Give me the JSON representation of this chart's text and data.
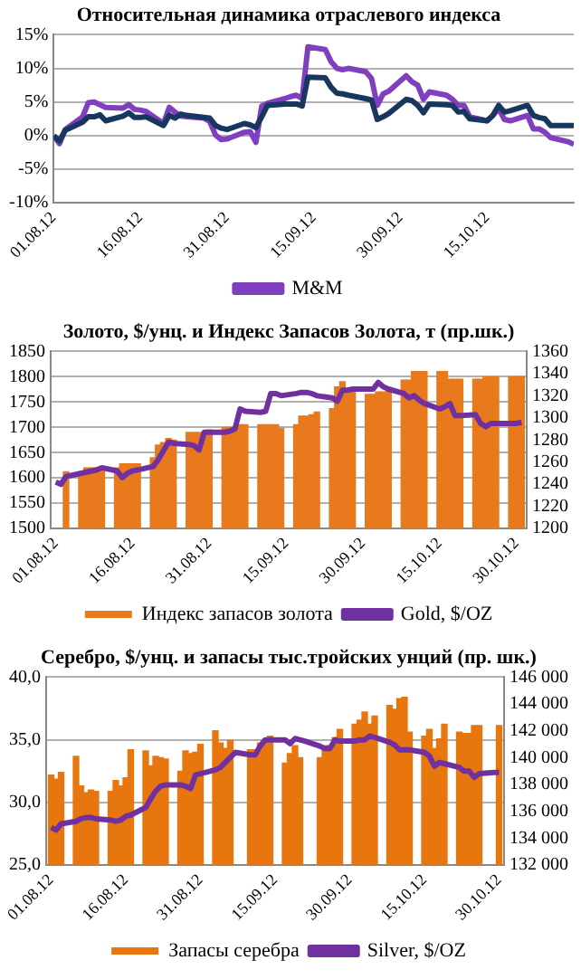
{
  "chart_data": [
    {
      "type": "line",
      "title": "Относительная динамика отраслевого индекса",
      "legend": "bottom",
      "grid": "y",
      "x": [
        "--08-01",
        "--08-02",
        "--08-03",
        "--08-06",
        "--08-07",
        "--08-08",
        "--08-09",
        "--08-10",
        "--08-13",
        "--08-14",
        "--08-15",
        "--08-16",
        "--08-17",
        "--08-20",
        "--08-21",
        "--08-22",
        "--08-23",
        "--08-24",
        "--08-27",
        "--08-28",
        "--08-29",
        "--08-30",
        "--08-31",
        "--09-03",
        "--09-04",
        "--09-05",
        "--09-06",
        "--09-07",
        "--09-10",
        "--09-11",
        "--09-12",
        "--09-13",
        "--09-14",
        "--09-17",
        "--09-18",
        "--09-19",
        "--09-20",
        "--09-21",
        "--09-24",
        "--09-25",
        "--09-26",
        "--09-27",
        "--09-28",
        "--10-01",
        "--10-02",
        "--10-03",
        "--10-04",
        "--10-05",
        "--10-08",
        "--10-09",
        "--10-10",
        "--10-11",
        "--10-12",
        "--10-15",
        "--10-16",
        "--10-17",
        "--10-18",
        "--10-19",
        "--10-22",
        "--10-23",
        "--10-24",
        "--10-25",
        "--10-26",
        "--10-29",
        "--10-30"
      ],
      "xlim": [
        "--08-01",
        "--10-30"
      ],
      "xticks": [
        {
          "value": "--08-01",
          "label": "01.08.12"
        },
        {
          "value": "--08-16",
          "label": "16.08.12"
        },
        {
          "value": "--08-31",
          "label": "31.08.12"
        },
        {
          "value": "--09-15",
          "label": "15.09.12"
        },
        {
          "value": "--09-30",
          "label": "30.09.12"
        },
        {
          "value": "--10-15",
          "label": "15.10.12"
        }
      ],
      "ylim": [
        -10,
        15
      ],
      "yticks": [
        {
          "value": -10,
          "label": "-10%"
        },
        {
          "value": -5,
          "label": "-5%"
        },
        {
          "value": 0,
          "label": "0%"
        },
        {
          "value": 5,
          "label": "5%"
        },
        {
          "value": 10,
          "label": "10%"
        },
        {
          "value": 15,
          "label": "15%"
        }
      ],
      "series": [
        {
          "color": "#17375e",
          "values": [
            0,
            -0.8,
            0.8,
            2.0,
            2.8,
            2.8,
            3.1,
            2.2,
            2.9,
            3.4,
            2.7,
            2.7,
            2.8,
            1.5,
            3.0,
            2.6,
            3.2,
            3.0,
            2.7,
            2.6,
            1.5,
            1.1,
            0.9,
            1.8,
            1.6,
            1.2,
            2.8,
            4.5,
            4.7,
            4.7,
            4.7,
            4.4,
            8.7,
            8.6,
            7.2,
            6.3,
            6.2,
            6.0,
            5.5,
            5.3,
            2.4,
            2.8,
            3.3,
            5.4,
            5.2,
            4.5,
            3.4,
            4.7,
            4.6,
            4.5,
            3.5,
            3.6,
            2.5,
            2.2,
            3.0,
            4.5,
            3.5,
            3.7,
            4.5,
            3.0,
            2.7,
            2.5,
            1.5,
            1.5,
            1.5
          ]
        },
        {
          "name": "M&M",
          "color": "#7f3fbf",
          "values": [
            0,
            -1.2,
            0.9,
            2.8,
            4.9,
            5.0,
            4.6,
            4.2,
            4.1,
            4.6,
            3.9,
            3.8,
            3.6,
            1.8,
            4.2,
            3.5,
            2.9,
            2.8,
            2.6,
            2.1,
            0.1,
            -0.6,
            -0.5,
            0.5,
            0.6,
            -1.0,
            4.4,
            4.8,
            5.5,
            5.8,
            6.0,
            5.5,
            13.2,
            12.8,
            11.0,
            10.0,
            9.8,
            10.0,
            9.5,
            8.5,
            4.5,
            6.2,
            6.6,
            8.9,
            8.0,
            7.5,
            5.4,
            6.5,
            6.0,
            5.4,
            4.5,
            4.5,
            2.8,
            2.2,
            3.0,
            4.0,
            2.4,
            2.2,
            3.0,
            1.0,
            1.0,
            0.5,
            -0.3,
            -0.9,
            -1.3
          ]
        }
      ]
    },
    {
      "type": "bar",
      "title": "Золото, $/унц. и Индекс Запасов Золота, т (пр.шк.)",
      "legend": "bottom",
      "grid": "y",
      "x": [
        "--08-01",
        "--08-02",
        "--08-03",
        "--08-06",
        "--08-07",
        "--08-08",
        "--08-09",
        "--08-10",
        "--08-13",
        "--08-14",
        "--08-15",
        "--08-16",
        "--08-17",
        "--08-20",
        "--08-21",
        "--08-22",
        "--08-23",
        "--08-24",
        "--08-27",
        "--08-28",
        "--08-29",
        "--08-30",
        "--08-31",
        "--09-03",
        "--09-04",
        "--09-05",
        "--09-06",
        "--09-07",
        "--09-10",
        "--09-11",
        "--09-12",
        "--09-13",
        "--09-14",
        "--09-17",
        "--09-18",
        "--09-19",
        "--09-20",
        "--09-21",
        "--09-24",
        "--09-25",
        "--09-26",
        "--09-27",
        "--09-28",
        "--10-01",
        "--10-02",
        "--10-03",
        "--10-04",
        "--10-05",
        "--10-08",
        "--10-09",
        "--10-10",
        "--10-11",
        "--10-12",
        "--10-15",
        "--10-16",
        "--10-17",
        "--10-18",
        "--10-19",
        "--10-22",
        "--10-23",
        "--10-24",
        "--10-25",
        "--10-26",
        "--10-29",
        "--10-30",
        "--10-31"
      ],
      "xlim": [
        "--07-31",
        "--11-01"
      ],
      "xticks": [
        {
          "value": "--08-01",
          "label": "01.08.12"
        },
        {
          "value": "--08-16",
          "label": "16.08.12"
        },
        {
          "value": "--08-31",
          "label": "31.08.12"
        },
        {
          "value": "--09-15",
          "label": "15.09.12"
        },
        {
          "value": "--09-30",
          "label": "30.09.12"
        },
        {
          "value": "--10-15",
          "label": "15.10.12"
        },
        {
          "value": "--10-30",
          "label": "30.10.12"
        }
      ],
      "ylim": [
        1500,
        1850
      ],
      "yticks": [
        1500,
        1550,
        1600,
        1650,
        1700,
        1750,
        1800,
        1850
      ],
      "y2lim": [
        1200,
        1360
      ],
      "y2ticks": [
        1200,
        1220,
        1240,
        1260,
        1280,
        1300,
        1320,
        1340,
        1360
      ],
      "series": [
        {
          "name": "Индекс запасов золота",
          "color": "#e8791c",
          "values": [
            null,
            null,
            1612,
            1610,
            1620,
            1620,
            1620,
            1620,
            1620,
            1628,
            1628,
            1628,
            1628,
            1640,
            1665,
            1670,
            1678,
            1675,
            1690,
            1690,
            1690,
            1690,
            1695,
            1700,
            1700,
            1700,
            1705,
            1705,
            1705,
            1705,
            1705,
            1705,
            1698,
            1705,
            1722,
            1722,
            1725,
            1730,
            1737,
            1780,
            1790,
            1775,
            1775,
            1765,
            1765,
            1770,
            1770,
            1772,
            1793,
            1793,
            1810,
            1810,
            1810,
            1810,
            1810,
            1795,
            1795,
            1795,
            1795,
            1795,
            1800,
            1800,
            1800,
            1800,
            1800,
            1800
          ]
        },
        {
          "name": "Gold, $/OZ",
          "type": "line",
          "axis": "y2",
          "color": "#7030a0",
          "values": [
            1242,
            1240,
            1247,
            1250,
            1251,
            1252,
            1253,
            1255,
            1252,
            1246,
            1250,
            1252,
            1253,
            1256,
            1262,
            1270,
            1278,
            1277,
            1276,
            1275,
            1271,
            1287,
            1287,
            1287,
            1288,
            1290,
            1308,
            1306,
            1305,
            1306,
            1322,
            1322,
            1320,
            1322,
            1323,
            1323,
            1322,
            1320,
            1318,
            1315,
            1325,
            1325,
            1326,
            1326,
            1326,
            1332,
            1328,
            1326,
            1322,
            1318,
            1320,
            1316,
            1313,
            1308,
            1310,
            1313,
            1302,
            1302,
            1303,
            1295,
            1292,
            1295,
            1295,
            1295,
            1295,
            1296
          ]
        }
      ]
    },
    {
      "type": "bar",
      "title": "Серебро, $/унц. и запасы тыс.тройских унций (пр. шк.)",
      "legend": "bottom",
      "grid": "y",
      "x": [
        "--08-01",
        "--08-02",
        "--08-03",
        "--08-06",
        "--08-07",
        "--08-08",
        "--08-09",
        "--08-10",
        "--08-13",
        "--08-14",
        "--08-15",
        "--08-16",
        "--08-17",
        "--08-20",
        "--08-21",
        "--08-22",
        "--08-23",
        "--08-24",
        "--08-27",
        "--08-28",
        "--08-29",
        "--08-30",
        "--08-31",
        "--09-03",
        "--09-04",
        "--09-05",
        "--09-06",
        "--09-07",
        "--09-10",
        "--09-11",
        "--09-12",
        "--09-13",
        "--09-14",
        "--09-17",
        "--09-18",
        "--09-19",
        "--09-20",
        "--09-21",
        "--09-24",
        "--09-25",
        "--09-26",
        "--09-27",
        "--09-28",
        "--10-01",
        "--10-02",
        "--10-03",
        "--10-04",
        "--10-05",
        "--10-08",
        "--10-09",
        "--10-10",
        "--10-11",
        "--10-12",
        "--10-15",
        "--10-16",
        "--10-17",
        "--10-18",
        "--10-19",
        "--10-22",
        "--10-23",
        "--10-24",
        "--10-25",
        "--10-26",
        "--10-29",
        "--10-30"
      ],
      "xlim": [
        "--07-31",
        "--10-31"
      ],
      "xticks": [
        {
          "value": "--08-01",
          "label": "01.08.12"
        },
        {
          "value": "--08-16",
          "label": "16.08.12"
        },
        {
          "value": "--08-31",
          "label": "31.08.12"
        },
        {
          "value": "--09-15",
          "label": "15.09.12"
        },
        {
          "value": "--09-30",
          "label": "30.09.12"
        },
        {
          "value": "--10-15",
          "label": "15.10.12"
        },
        {
          "value": "--10-30",
          "label": "30.10.12"
        }
      ],
      "ylim": [
        25,
        40
      ],
      "yticks": [
        {
          "value": 25,
          "label": "25,0"
        },
        {
          "value": 30,
          "label": "30,0"
        },
        {
          "value": 35,
          "label": "35,0"
        },
        {
          "value": 40,
          "label": "40,0"
        }
      ],
      "y2lim": [
        132000,
        146000
      ],
      "y2ticks": [
        {
          "value": 132000,
          "label": "132 000"
        },
        {
          "value": 134000,
          "label": "134 000"
        },
        {
          "value": 136000,
          "label": "136 000"
        },
        {
          "value": 138000,
          "label": "138 000"
        },
        {
          "value": 140000,
          "label": "140 000"
        },
        {
          "value": 142000,
          "label": "142 000"
        },
        {
          "value": 144000,
          "label": "144 000"
        },
        {
          "value": 146000,
          "label": "146 000"
        }
      ],
      "series": [
        {
          "name": "Запасы серебра",
          "axis": "y2",
          "color": "#e8760f",
          "values": [
            138700,
            138400,
            138900,
            140100,
            137900,
            137400,
            137600,
            137500,
            137500,
            138300,
            137900,
            138500,
            140600,
            140500,
            139400,
            140100,
            140000,
            139900,
            139000,
            140500,
            140300,
            140400,
            141000,
            142000,
            141100,
            140700,
            141300,
            null,
            140600,
            140600,
            141100,
            141100,
            141600,
            139600,
            140300,
            140900,
            140000,
            null,
            140000,
            140900,
            140900,
            141500,
            142100,
            142500,
            142800,
            143400,
            142500,
            143100,
            143900,
            143600,
            144400,
            144500,
            141900,
            141600,
            142100,
            140700,
            141400,
            142500,
            141900,
            141800,
            141800,
            142400,
            142400,
            null,
            142400
          ]
        },
        {
          "name": "Silver, $/OZ",
          "type": "line",
          "color": "#7030a0",
          "values": [
            28.0,
            27.8,
            28.3,
            28.5,
            28.7,
            28.8,
            28.8,
            28.7,
            28.6,
            28.5,
            28.6,
            28.9,
            29.0,
            29.6,
            30.3,
            30.9,
            31.3,
            31.4,
            31.4,
            31.3,
            31.1,
            32.2,
            32.3,
            32.6,
            32.8,
            33.2,
            33.6,
            34.0,
            33.8,
            33.8,
            34.5,
            35.0,
            35.0,
            35.0,
            34.7,
            35.1,
            35.0,
            34.9,
            34.5,
            34.3,
            34.3,
            35.0,
            34.9,
            34.9,
            35.0,
            35.0,
            35.3,
            35.2,
            34.8,
            34.6,
            34.2,
            34.2,
            34.2,
            34.0,
            33.7,
            32.9,
            33.2,
            33.1,
            32.8,
            32.5,
            32.5,
            32.0,
            32.3,
            32.4,
            32.4
          ]
        }
      ]
    }
  ]
}
